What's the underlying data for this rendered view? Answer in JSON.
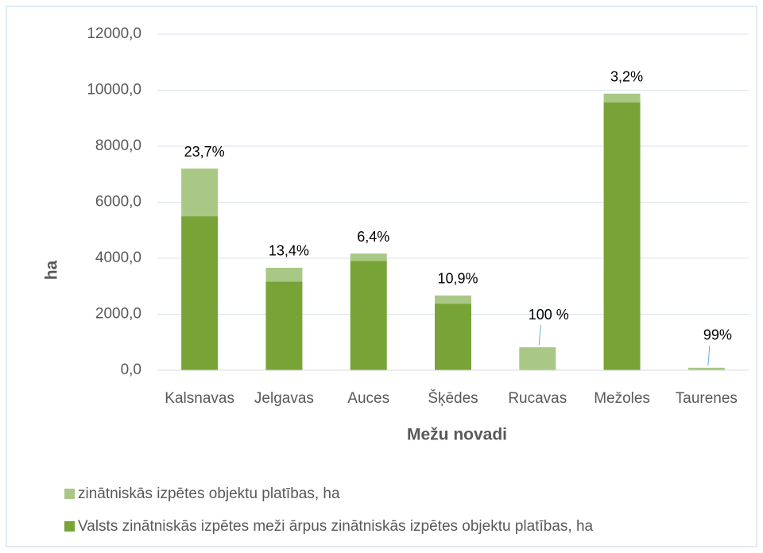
{
  "chart_data": {
    "type": "stacked_bar",
    "x_label": "Mežu novadi",
    "y_label": "ha",
    "categories": [
      "Kalsnavas",
      "Jelgavas",
      "Auces",
      "Šķēdes",
      "Rucavas",
      "Mežoles",
      "Taurenes"
    ],
    "series": [
      {
        "name": "zinātniskās izpētes objektu platības, ha",
        "color": "#a9c886",
        "values": [
          1700,
          490,
          267,
          290,
          820,
          316,
          89
        ]
      },
      {
        "name": "Valsts zinātniskās izpētes meži ārpus zinātniskās izpētes objektu platības, ha",
        "color": "#78a437",
        "values": [
          5500,
          3170,
          3900,
          2380,
          0,
          9560,
          1
        ]
      }
    ],
    "annotations": [
      "23,7%",
      "13,4%",
      "6,4%",
      "10,9%",
      "100 %",
      "3,2%",
      "99%"
    ],
    "ylim": [
      0,
      12000
    ],
    "yticks": [
      {
        "value": 0,
        "label": "0,0"
      },
      {
        "value": 2000,
        "label": "2000,0"
      },
      {
        "value": 4000,
        "label": "4000,0"
      },
      {
        "value": 6000,
        "label": "6000,0"
      },
      {
        "value": 8000,
        "label": "8000,0"
      },
      {
        "value": 10000,
        "label": "10000,0"
      },
      {
        "value": 12000,
        "label": "12000,0"
      }
    ],
    "grid": true,
    "legend": "bottom"
  }
}
